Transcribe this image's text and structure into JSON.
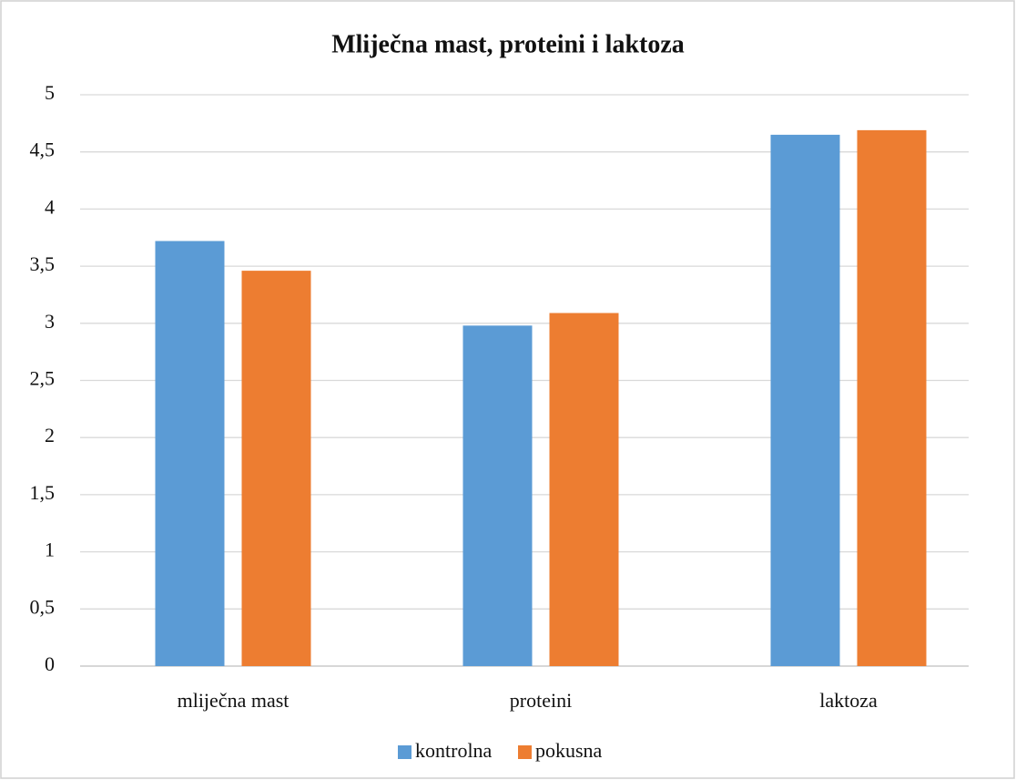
{
  "chart_data": {
    "type": "bar",
    "title": "Mliječna mast, proteini i laktoza",
    "categories": [
      "mliječna mast",
      "proteini",
      "laktoza"
    ],
    "series": [
      {
        "name": "kontrolna",
        "color": "#5b9bd5",
        "values": [
          3.72,
          2.98,
          4.65
        ]
      },
      {
        "name": "pokusna",
        "color": "#ed7d31",
        "values": [
          3.46,
          3.09,
          4.69
        ]
      }
    ],
    "ylim": [
      0,
      5
    ],
    "yticks": [
      0,
      {
        "value": 0.5,
        "label": "0,5"
      },
      1,
      {
        "value": 1.5,
        "label": "1,5"
      },
      2,
      {
        "value": 2.5,
        "label": "2,5"
      },
      3,
      {
        "value": 3.5,
        "label": "3,5"
      },
      4,
      {
        "value": 4.5,
        "label": "4,5"
      },
      5
    ],
    "grid": true,
    "legend": "bottom"
  }
}
